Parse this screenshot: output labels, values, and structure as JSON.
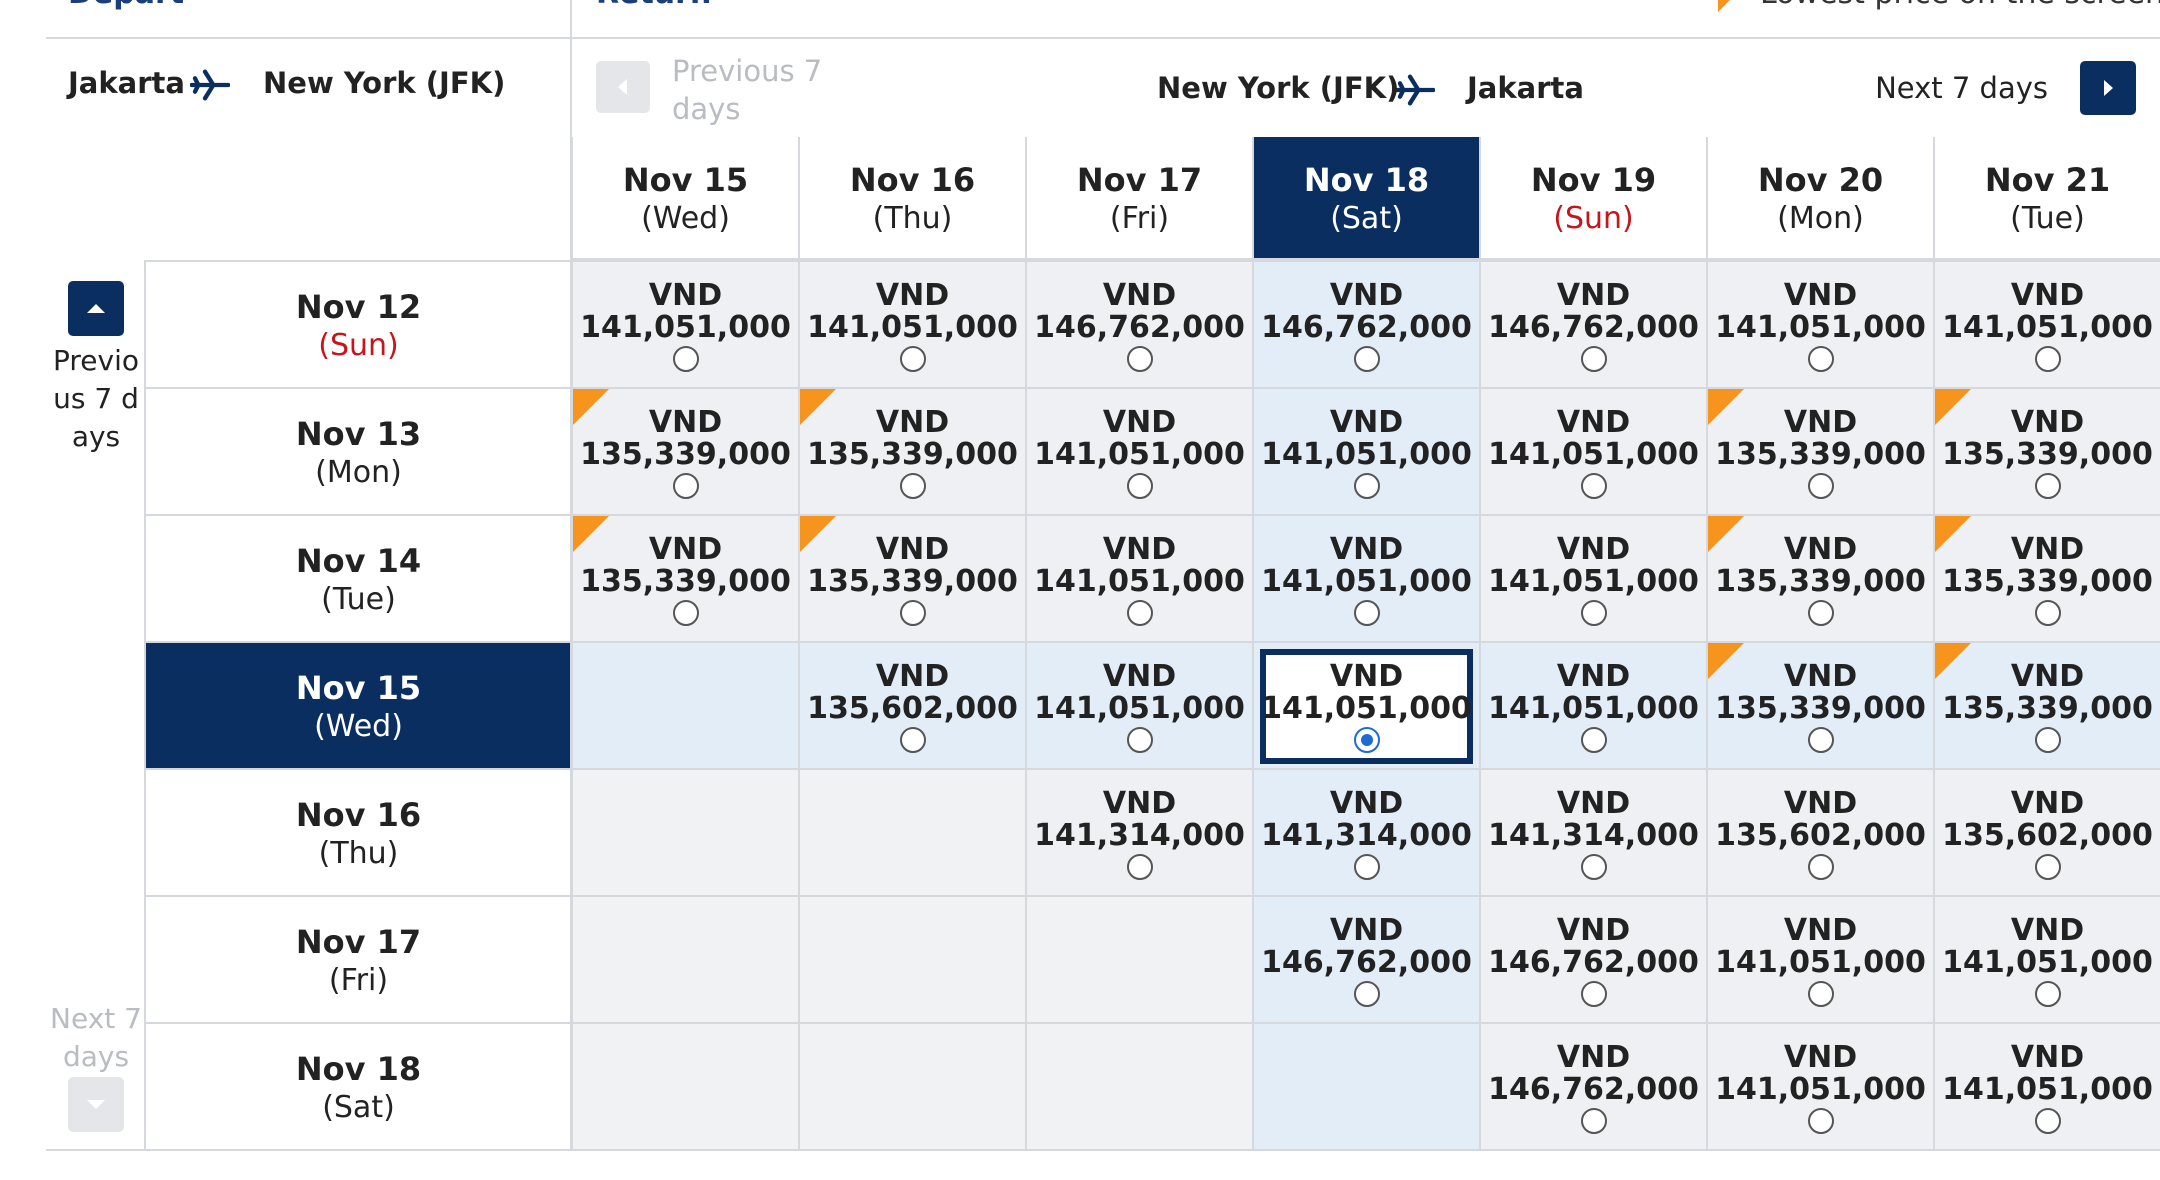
{
  "header": {
    "depart": "Depart",
    "return": "Return",
    "legend": "Lowest price on the screen"
  },
  "outbound": {
    "from": "Jakarta",
    "to": "New York (JFK)",
    "previous": "Previous 7 days",
    "next": "Next 7 days"
  },
  "inbound": {
    "from": "New York (JFK)",
    "to": "Jakarta",
    "previous": "Previous 7 days",
    "next": "Next 7 days"
  },
  "selected": {
    "row": 3,
    "column": 3
  },
  "columns": [
    {
      "date": "Nov 15",
      "day": "(Wed)",
      "sunday": false
    },
    {
      "date": "Nov 16",
      "day": "(Thu)",
      "sunday": false
    },
    {
      "date": "Nov 17",
      "day": "(Fri)",
      "sunday": false
    },
    {
      "date": "Nov 18",
      "day": "(Sat)",
      "sunday": false
    },
    {
      "date": "Nov 19",
      "day": "(Sun)",
      "sunday": true
    },
    {
      "date": "Nov 20",
      "day": "(Mon)",
      "sunday": false
    },
    {
      "date": "Nov 21",
      "day": "(Tue)",
      "sunday": false
    }
  ],
  "rows": [
    {
      "date": "Nov 12",
      "day": "(Sun)",
      "sunday": true,
      "cells": [
        {
          "currency": "VND",
          "price": "141,051,000",
          "lowest": false
        },
        {
          "currency": "VND",
          "price": "141,051,000",
          "lowest": false
        },
        {
          "currency": "VND",
          "price": "146,762,000",
          "lowest": false
        },
        {
          "currency": "VND",
          "price": "146,762,000",
          "lowest": false
        },
        {
          "currency": "VND",
          "price": "146,762,000",
          "lowest": false
        },
        {
          "currency": "VND",
          "price": "141,051,000",
          "lowest": false
        },
        {
          "currency": "VND",
          "price": "141,051,000",
          "lowest": false
        }
      ]
    },
    {
      "date": "Nov 13",
      "day": "(Mon)",
      "sunday": false,
      "cells": [
        {
          "currency": "VND",
          "price": "135,339,000",
          "lowest": true
        },
        {
          "currency": "VND",
          "price": "135,339,000",
          "lowest": true
        },
        {
          "currency": "VND",
          "price": "141,051,000",
          "lowest": false
        },
        {
          "currency": "VND",
          "price": "141,051,000",
          "lowest": false
        },
        {
          "currency": "VND",
          "price": "141,051,000",
          "lowest": false
        },
        {
          "currency": "VND",
          "price": "135,339,000",
          "lowest": true
        },
        {
          "currency": "VND",
          "price": "135,339,000",
          "lowest": true
        }
      ]
    },
    {
      "date": "Nov 14",
      "day": "(Tue)",
      "sunday": false,
      "cells": [
        {
          "currency": "VND",
          "price": "135,339,000",
          "lowest": true
        },
        {
          "currency": "VND",
          "price": "135,339,000",
          "lowest": true
        },
        {
          "currency": "VND",
          "price": "141,051,000",
          "lowest": false
        },
        {
          "currency": "VND",
          "price": "141,051,000",
          "lowest": false
        },
        {
          "currency": "VND",
          "price": "141,051,000",
          "lowest": false
        },
        {
          "currency": "VND",
          "price": "135,339,000",
          "lowest": true
        },
        {
          "currency": "VND",
          "price": "135,339,000",
          "lowest": true
        }
      ]
    },
    {
      "date": "Nov 15",
      "day": "(Wed)",
      "sunday": false,
      "cells": [
        null,
        {
          "currency": "VND",
          "price": "135,602,000",
          "lowest": false
        },
        {
          "currency": "VND",
          "price": "141,051,000",
          "lowest": false
        },
        {
          "currency": "VND",
          "price": "141,051,000",
          "lowest": false
        },
        {
          "currency": "VND",
          "price": "141,051,000",
          "lowest": false
        },
        {
          "currency": "VND",
          "price": "135,339,000",
          "lowest": true
        },
        {
          "currency": "VND",
          "price": "135,339,000",
          "lowest": true
        }
      ]
    },
    {
      "date": "Nov 16",
      "day": "(Thu)",
      "sunday": false,
      "cells": [
        null,
        null,
        {
          "currency": "VND",
          "price": "141,314,000",
          "lowest": false
        },
        {
          "currency": "VND",
          "price": "141,314,000",
          "lowest": false
        },
        {
          "currency": "VND",
          "price": "141,314,000",
          "lowest": false
        },
        {
          "currency": "VND",
          "price": "135,602,000",
          "lowest": false
        },
        {
          "currency": "VND",
          "price": "135,602,000",
          "lowest": false
        }
      ]
    },
    {
      "date": "Nov 17",
      "day": "(Fri)",
      "sunday": false,
      "cells": [
        null,
        null,
        null,
        {
          "currency": "VND",
          "price": "146,762,000",
          "lowest": false
        },
        {
          "currency": "VND",
          "price": "146,762,000",
          "lowest": false
        },
        {
          "currency": "VND",
          "price": "141,051,000",
          "lowest": false
        },
        {
          "currency": "VND",
          "price": "141,051,000",
          "lowest": false
        }
      ]
    },
    {
      "date": "Nov 18",
      "day": "(Sat)",
      "sunday": false,
      "cells": [
        null,
        null,
        null,
        null,
        {
          "currency": "VND",
          "price": "146,762,000",
          "lowest": false
        },
        {
          "currency": "VND",
          "price": "141,051,000",
          "lowest": false
        },
        {
          "currency": "VND",
          "price": "141,051,000",
          "lowest": false
        }
      ]
    }
  ]
}
